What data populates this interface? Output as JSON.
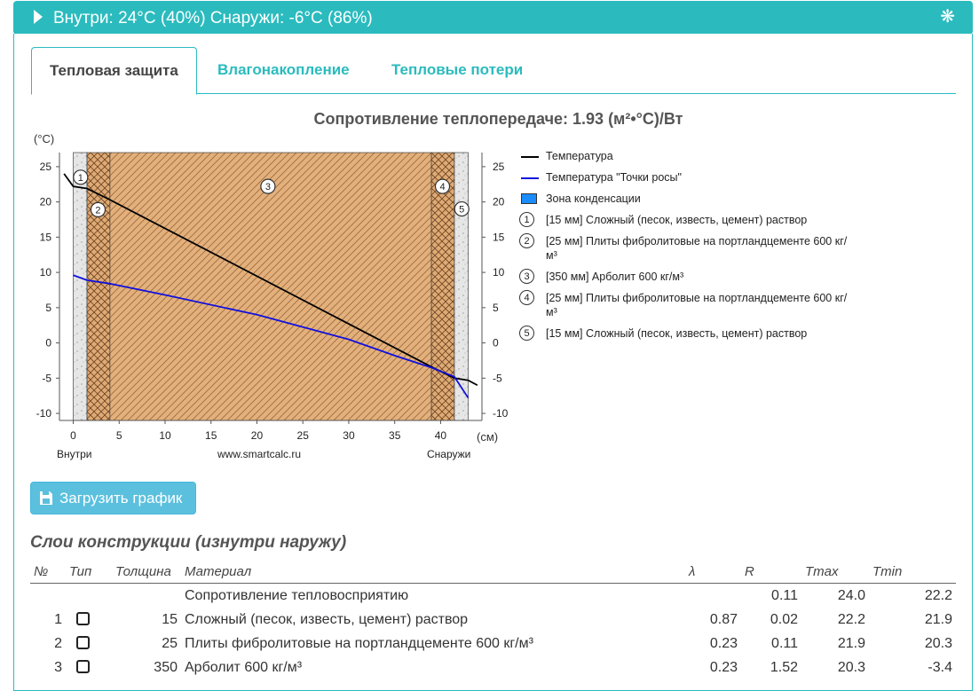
{
  "header": {
    "title": "Внутри: 24°C (40%) Снаружи: -6°C (86%)",
    "gear_icon": "snowflake-gear-icon"
  },
  "tabs": [
    {
      "label": "Тепловая защита",
      "active": true
    },
    {
      "label": "Влагонакопление",
      "active": false
    },
    {
      "label": "Тепловые потери",
      "active": false
    }
  ],
  "chart_title": "Сопротивление теплопередаче: 1.93 (м²•°C)/Вт",
  "chart_data": {
    "type": "line",
    "ylabel": "(°C)",
    "xlabel": "(см)",
    "x_left_label": "Внутри",
    "x_center_label": "www.smartcalc.ru",
    "x_right_label": "Снаружи",
    "xlim": [
      -1.5,
      44.5
    ],
    "ylim": [
      -11,
      27
    ],
    "x_ticks": [
      0,
      5,
      10,
      15,
      20,
      25,
      30,
      35,
      40
    ],
    "x_tick_labels": [
      "0",
      "5",
      "10",
      "15",
      "20",
      "25",
      "30",
      "35",
      "40"
    ],
    "y_ticks": [
      25,
      20,
      15,
      10,
      5,
      0,
      -5,
      -10
    ],
    "y_tick_labels": [
      "25",
      "20",
      "15",
      "10",
      "5",
      "0",
      "-5",
      "-10"
    ],
    "layers": [
      {
        "id": "1",
        "from": 0,
        "to": 1.5,
        "kind": "plaster"
      },
      {
        "id": "2",
        "from": 1.5,
        "to": 4,
        "kind": "fibrolite"
      },
      {
        "id": "3",
        "from": 4,
        "to": 39,
        "kind": "arbolit"
      },
      {
        "id": "4",
        "from": 39,
        "to": 41.5,
        "kind": "fibrolite"
      },
      {
        "id": "5",
        "from": 41.5,
        "to": 43,
        "kind": "plaster"
      }
    ],
    "layer_marker_labels": [
      "1",
      "2",
      "3",
      "4",
      "5"
    ],
    "series": [
      {
        "name": "Температура",
        "color": "#000000",
        "x": [
          -1,
          0,
          1.5,
          4,
          39,
          41.5,
          43,
          44
        ],
        "y": [
          24,
          22.2,
          21.9,
          20.3,
          -3.4,
          -5.0,
          -5.3,
          -6.0
        ]
      },
      {
        "name": "Температура \"Точки росы\"",
        "color": "#1010dd",
        "x": [
          0,
          1.5,
          4,
          10,
          20,
          30,
          35,
          39,
          41.5,
          43
        ],
        "y": [
          9.6,
          8.9,
          8.4,
          6.8,
          4.0,
          0.5,
          -1.8,
          -3.5,
          -4.8,
          -7.8
        ]
      }
    ],
    "condensation_zone": {
      "name": "Зона конденсации",
      "color": "#1a8cff"
    }
  },
  "legend": {
    "temp": "Температура",
    "dew": "Температура \"Точки росы\"",
    "zone": "Зона конденсации",
    "layers": [
      {
        "num": "1",
        "text": "[15 мм] Сложный (песок, известь, цемент) раствор"
      },
      {
        "num": "2",
        "text": "[25 мм] Плиты фибролитовые на портландцементе 600 кг/м³"
      },
      {
        "num": "3",
        "text": "[350 мм] Арболит 600 кг/м³"
      },
      {
        "num": "4",
        "text": "[25 мм] Плиты фибролитовые на портландцементе 600 кг/м³"
      },
      {
        "num": "5",
        "text": "[15 мм] Сложный (песок, известь, цемент) раствор"
      }
    ]
  },
  "download_button": {
    "label": "Загрузить график",
    "icon": "floppy-disk-icon"
  },
  "section_title": "Слои конструкции (изнутри наружу)",
  "table": {
    "headers": {
      "num": "№",
      "type": "Тип",
      "thickness": "Толщина",
      "material": "Материал",
      "lambda": "λ",
      "r": "R",
      "tmax": "Tmax",
      "tmin": "Tmin"
    },
    "rows": [
      {
        "num": "",
        "type": "",
        "thickness": "",
        "material": "Сопротивление тепловосприятию",
        "lambda": "",
        "r": "0.11",
        "tmax": "24.0",
        "tmin": "22.2"
      },
      {
        "num": "1",
        "type": "checkbox",
        "thickness": "15",
        "material": "Сложный (песок, известь, цемент) раствор",
        "lambda": "0.87",
        "r": "0.02",
        "tmax": "22.2",
        "tmin": "21.9"
      },
      {
        "num": "2",
        "type": "checkbox",
        "thickness": "25",
        "material": "Плиты фибролитовые на портландцементе 600 кг/м³",
        "lambda": "0.23",
        "r": "0.11",
        "tmax": "21.9",
        "tmin": "20.3"
      },
      {
        "num": "3",
        "type": "checkbox",
        "thickness": "350",
        "material": "Арболит 600 кг/м³",
        "lambda": "0.23",
        "r": "1.52",
        "tmax": "20.3",
        "tmin": "-3.4"
      }
    ]
  }
}
